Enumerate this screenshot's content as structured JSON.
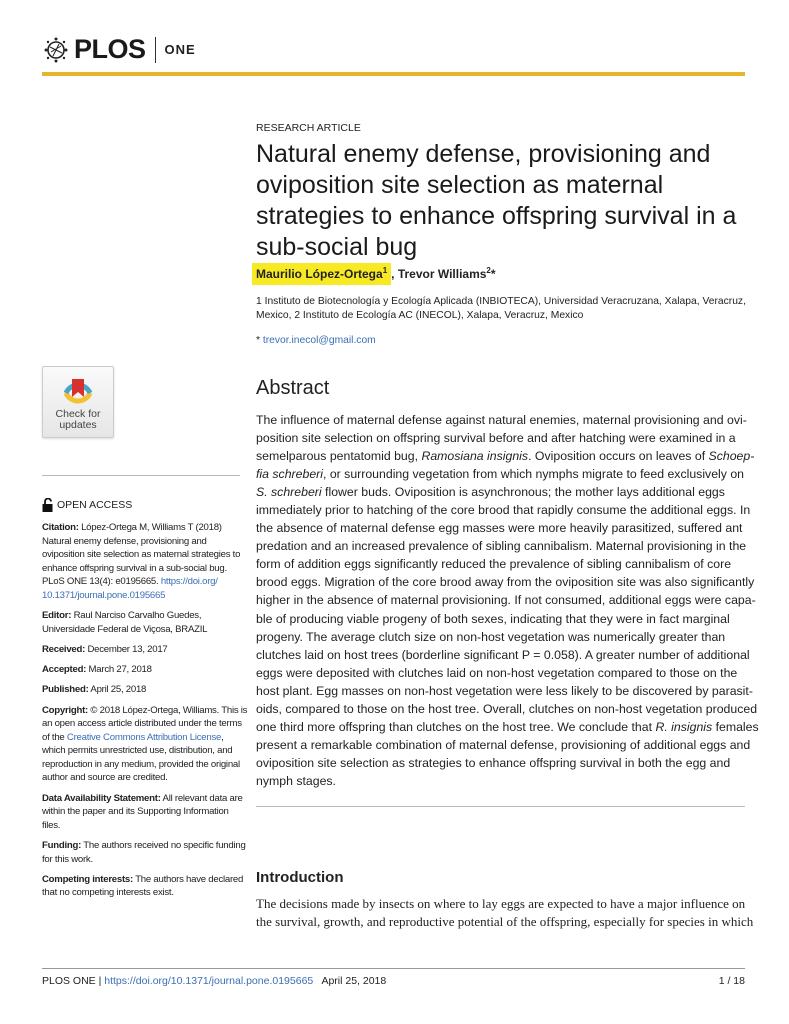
{
  "header": {
    "brand": "PLOS",
    "journal": "ONE",
    "gold": "#e8b42a"
  },
  "article_type": "RESEARCH ARTICLE",
  "title_lines": [
    "Natural enemy defense, provisioning and",
    "oviposition site selection as maternal",
    "strategies to enhance offspring survival in a",
    "sub-social bug"
  ],
  "authors": {
    "a1": "Maurilio López-Ortega",
    "a1_sup": "1",
    "comma": ",",
    "a2": "Trevor Williams",
    "a2_sup": "2",
    "star": "*",
    "highlight": "#f7ea24"
  },
  "affiliations": [
    "1  Instituto de Biotecnología y Ecología Aplicada (INBIOTECA), Universidad Veracruzana, Xalapa, Veracruz,",
    "Mexico, 2  Instituto de Ecología AC (INECOL), Xalapa, Veracruz, Mexico"
  ],
  "email": {
    "prefix": "* ",
    "address": "trevor.inecol@gmail.com"
  },
  "abstract": {
    "heading": "Abstract",
    "lines": [
      [
        {
          "t": "The influence of maternal defense against natural enemies, maternal provisioning and ovi-"
        }
      ],
      [
        {
          "t": "position site selection on offspring survival before and after hatching were examined in a"
        }
      ],
      [
        {
          "t": "semelparous pentatomid bug, "
        },
        {
          "t": "Ramosiana insignis",
          "i": true
        },
        {
          "t": ". Oviposition occurs on leaves of "
        },
        {
          "t": "Schoep-",
          "i": true
        }
      ],
      [
        {
          "t": "fia schreberi",
          "i": true
        },
        {
          "t": ", or surrounding vegetation from which nymphs migrate to feed exclusively on"
        }
      ],
      [
        {
          "t": "S. schreberi",
          "i": true
        },
        {
          "t": " flower buds. Oviposition is asynchronous; the mother lays additional eggs"
        }
      ],
      [
        {
          "t": "immediately prior to hatching of the core brood that rapidly consume the additional eggs. In"
        }
      ],
      [
        {
          "t": "the absence of maternal defense egg masses were more heavily parasitized, suffered ant"
        }
      ],
      [
        {
          "t": "predation and an increased prevalence of sibling cannibalism. Maternal provisioning in the"
        }
      ],
      [
        {
          "t": "form of addition eggs significantly reduced the prevalence of sibling cannibalism of core"
        }
      ],
      [
        {
          "t": "brood eggs. Migration of the core brood away from the oviposition site was also significantly"
        }
      ],
      [
        {
          "t": "higher in the absence of maternal provisioning. If not consumed, additional eggs were capa-"
        }
      ],
      [
        {
          "t": "ble of producing viable progeny of both sexes, indicating that they were in fact marginal"
        }
      ],
      [
        {
          "t": "progeny. The average clutch size on non-host vegetation was numerically greater than"
        }
      ],
      [
        {
          "t": "clutches laid on host trees (borderline significant P = 0.058). A greater number of additional"
        }
      ],
      [
        {
          "t": "eggs were deposited with clutches laid on non-host vegetation compared to those on the"
        }
      ],
      [
        {
          "t": "host plant. Egg masses on non-host vegetation were less likely to be discovered by parasit-"
        }
      ],
      [
        {
          "t": "oids, compared to those on the host tree. Overall, clutches on non-host vegetation produced"
        }
      ],
      [
        {
          "t": "one third more offspring than clutches on the host tree. We conclude that "
        },
        {
          "t": "R. insignis",
          "i": true
        },
        {
          "t": " females"
        }
      ],
      [
        {
          "t": "present a remarkable combination of maternal defense, provisioning of additional eggs and"
        }
      ],
      [
        {
          "t": "oviposition site selection as strategies to enhance offspring survival in both the egg and"
        }
      ],
      [
        {
          "t": "nymph stages."
        }
      ]
    ]
  },
  "introduction": {
    "heading": "Introduction",
    "lines": [
      "The decisions made by insects on where to lay eggs are expected to have a major influence on",
      "the survival, growth, and reproductive potential of the offspring, especially for species in which"
    ]
  },
  "sidebar": {
    "check_updates": [
      "Check for",
      "updates"
    ],
    "open_access": "OPEN ACCESS",
    "blocks": [
      {
        "label": "Citation:",
        "lines": [
          " López-Ortega M, Williams T (2018)",
          "Natural enemy defense, provisioning and",
          "oviposition site selection as maternal strategies to",
          "enhance offspring survival in a sub-social bug.",
          "PLoS ONE 13(4): e0195665. "
        ],
        "link_lines": [
          "https://doi.org/",
          "10.1371/journal.pone.0195665"
        ]
      },
      {
        "label": "Editor:",
        "lines": [
          " Raul Narciso Carvalho Guedes,",
          "Universidade Federal de Viçosa, BRAZIL"
        ]
      },
      {
        "label": "Received:",
        "lines": [
          " December 13, 2017"
        ]
      },
      {
        "label": "Accepted:",
        "lines": [
          " March 27, 2018"
        ]
      },
      {
        "label": "Published:",
        "lines": [
          " April 25, 2018"
        ]
      },
      {
        "label": "Copyright:",
        "lines": [
          " © 2018 López-Ortega, Williams. This is",
          "an open access article distributed under the terms",
          "of the ",
          "which permits unrestricted use, distribution, and",
          "reproduction in any medium, provided the original",
          "author and source are credited."
        ],
        "link": "Creative Commons Attribution License",
        "link_suffix": ","
      },
      {
        "label": "Data Availability Statement:",
        "lines": [
          " All relevant data are",
          "within the paper and its Supporting Information",
          "files."
        ]
      },
      {
        "label": "Funding:",
        "lines": [
          " The authors received no specific funding",
          "for this work."
        ]
      },
      {
        "label": "Competing interests:",
        "lines": [
          " The authors have declared",
          "that no competing interests exist."
        ]
      }
    ]
  },
  "footer": {
    "journal": "PLOS ONE | ",
    "doi": "https://doi.org/10.1371/journal.pone.0195665",
    "date": "   April 25, 2018",
    "page": "1 / 18"
  }
}
